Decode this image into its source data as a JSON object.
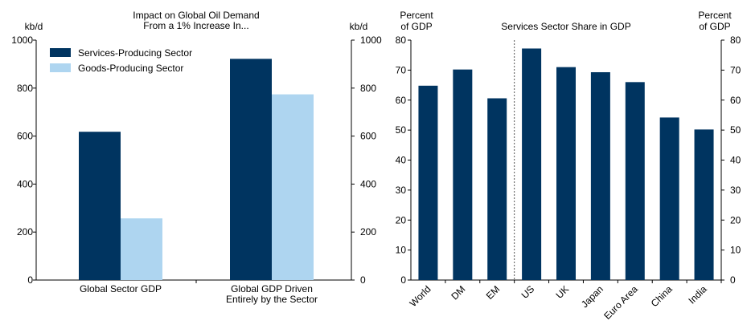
{
  "colors": {
    "dark": "#003460",
    "light": "#aed5f0",
    "axis": "#000000",
    "divider": "#555555"
  },
  "chart_data": [
    {
      "type": "bar",
      "title_lines": [
        "Impact on Global Oil Demand",
        "From a 1% Increase In..."
      ],
      "y_unit_left": "kb/d",
      "y_unit_right": "kb/d",
      "ylim": [
        0,
        1000
      ],
      "yticks": [
        0,
        200,
        400,
        600,
        800,
        1000
      ],
      "categories": [
        [
          "Global Sector GDP"
        ],
        [
          "Global GDP Driven",
          "Entirely by the Sector"
        ]
      ],
      "series": [
        {
          "name": "Services-Producing Sector",
          "color_key": "dark",
          "values": [
            618,
            922
          ]
        },
        {
          "name": "Goods-Producing Sector",
          "color_key": "light",
          "values": [
            257,
            774
          ]
        }
      ],
      "legend_position": "top-left"
    },
    {
      "type": "bar",
      "title": "Services Sector Share in GDP",
      "y_unit_left": [
        "Percent",
        "of GDP"
      ],
      "y_unit_right": [
        "Percent",
        "of GDP"
      ],
      "ylim": [
        0,
        80
      ],
      "yticks": [
        0,
        10,
        20,
        30,
        40,
        50,
        60,
        70,
        80
      ],
      "categories": [
        "World",
        "DM",
        "EM",
        "US",
        "UK",
        "Japan",
        "Euro Area",
        "China",
        "India"
      ],
      "values": [
        64.8,
        70.2,
        60.6,
        77.2,
        71.0,
        69.3,
        66.0,
        54.2,
        50.2
      ],
      "divider_after_index": 2
    }
  ]
}
